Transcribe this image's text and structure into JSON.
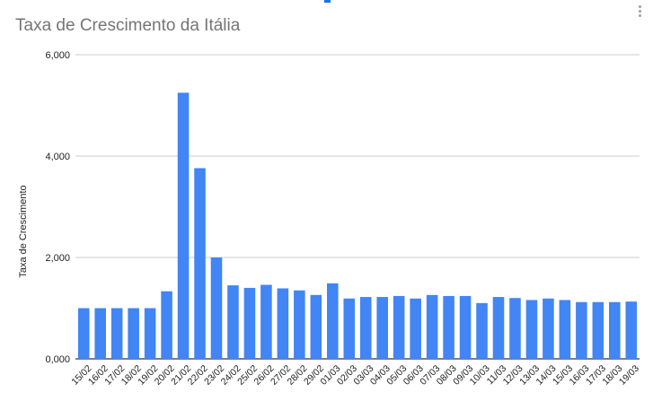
{
  "chart_data": {
    "type": "bar",
    "title": "Taxa de Crescimento da Itália",
    "xlabel": "",
    "ylabel": "Taxa de Crescimento",
    "ylim": [
      0,
      6000
    ],
    "yticks": [
      0,
      2000,
      4000,
      6000
    ],
    "ytick_labels": [
      "0,000",
      "2,000",
      "4,000",
      "6,000"
    ],
    "grid": true,
    "legend": "none",
    "bar_color": "#4285f4",
    "categories": [
      "15/02",
      "16/02",
      "17/02",
      "18/02",
      "19/02",
      "20/02",
      "21/02",
      "22/02",
      "23/02",
      "24/02",
      "25/02",
      "26/02",
      "27/02",
      "28/02",
      "29/02",
      "01/03",
      "02/03",
      "03/03",
      "04/03",
      "05/03",
      "06/03",
      "07/03",
      "08/03",
      "09/03",
      "10/03",
      "11/03",
      "12/03",
      "13/03",
      "14/03",
      "15/03",
      "16/03",
      "17/03",
      "18/03",
      "19/03"
    ],
    "values": [
      1000,
      1000,
      1000,
      1000,
      1000,
      1333,
      5250,
      3762,
      2000,
      1450,
      1400,
      1460,
      1390,
      1350,
      1260,
      1490,
      1190,
      1220,
      1220,
      1240,
      1190,
      1260,
      1240,
      1240,
      1100,
      1220,
      1200,
      1160,
      1190,
      1160,
      1120,
      1120,
      1120,
      1130
    ]
  }
}
